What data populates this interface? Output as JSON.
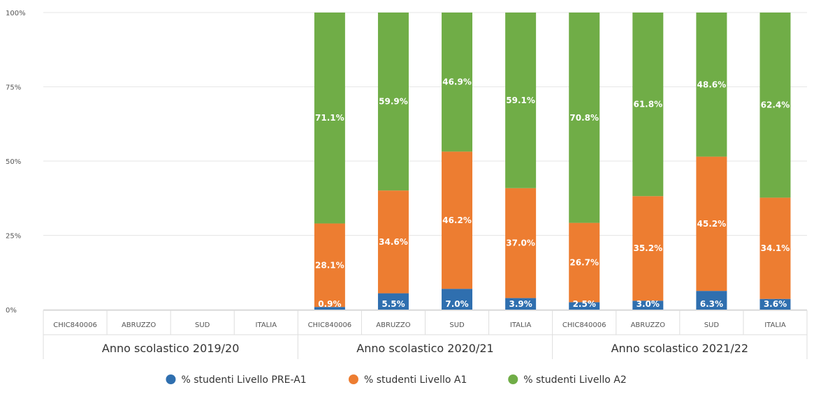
{
  "chart_data": {
    "type": "bar",
    "stacked": true,
    "y_unit": "%",
    "ylim": [
      0,
      100
    ],
    "yticks": [
      "0%",
      "25%",
      "50%",
      "75%",
      "100%"
    ],
    "grid": true,
    "legend_position": "bottom",
    "categories": [
      "CHIC840006",
      "ABRUZZO",
      "SUD",
      "ITALIA",
      "CHIC840006",
      "ABRUZZO",
      "SUD",
      "ITALIA",
      "CHIC840006",
      "ABRUZZO",
      "SUD",
      "ITALIA"
    ],
    "groups": [
      {
        "label": "Anno scolastico 2019/20",
        "categories": [
          "CHIC840006",
          "ABRUZZO",
          "SUD",
          "ITALIA"
        ]
      },
      {
        "label": "Anno scolastico 2020/21",
        "categories": [
          "CHIC840006",
          "ABRUZZO",
          "SUD",
          "ITALIA"
        ]
      },
      {
        "label": "Anno scolastico 2021/22",
        "categories": [
          "CHIC840006",
          "ABRUZZO",
          "SUD",
          "ITALIA"
        ]
      }
    ],
    "series": [
      {
        "name": "% studenti Livello PRE-A1",
        "color": "#2f6faf",
        "values": [
          null,
          null,
          null,
          null,
          0.9,
          5.5,
          7.0,
          3.9,
          2.5,
          3.0,
          6.3,
          3.6
        ],
        "labels": [
          "",
          "",
          "",
          "",
          "0.9%",
          "5.5%",
          "7.0%",
          "3.9%",
          "2.5%",
          "3.0%",
          "6.3%",
          "3.6%"
        ]
      },
      {
        "name": "% studenti Livello A1",
        "color": "#ed7d31",
        "values": [
          null,
          null,
          null,
          null,
          28.1,
          34.6,
          46.2,
          37.0,
          26.7,
          35.2,
          45.2,
          34.1
        ],
        "labels": [
          "",
          "",
          "",
          "",
          "28.1%",
          "34.6%",
          "46.2%",
          "37.0%",
          "26.7%",
          "35.2%",
          "45.2%",
          "34.1%"
        ]
      },
      {
        "name": "% studenti Livello A2",
        "color": "#70ad47",
        "values": [
          null,
          null,
          null,
          null,
          71.1,
          59.9,
          46.9,
          59.1,
          70.8,
          61.8,
          48.6,
          62.4
        ],
        "labels": [
          "",
          "",
          "",
          "",
          "71.1%",
          "59.9%",
          "46.9%",
          "59.1%",
          "70.8%",
          "61.8%",
          "48.6%",
          "62.4%"
        ]
      }
    ]
  }
}
